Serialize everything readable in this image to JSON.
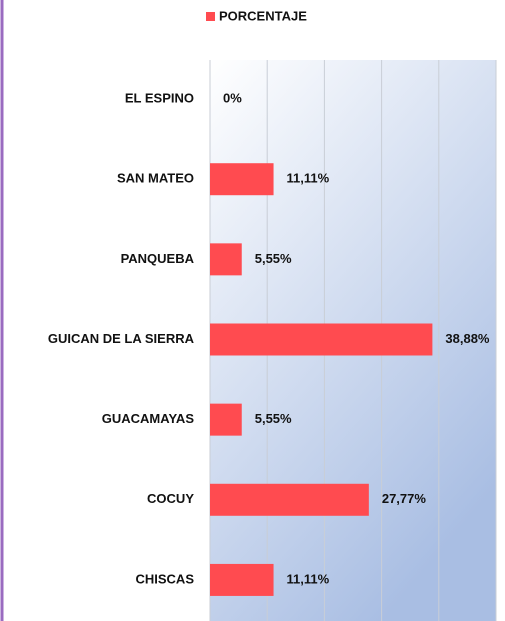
{
  "chart_data": {
    "type": "hbar",
    "legend": "PORCENTAJE",
    "categories": [
      "EL ESPINO",
      "SAN MATEO",
      "PANQUEBA",
      "GUICAN DE LA SIERRA",
      "GUACAMAYAS",
      "COCUY",
      "CHISCAS"
    ],
    "values": [
      0,
      11.11,
      5.55,
      38.88,
      5.55,
      27.77,
      11.11
    ],
    "value_labels": [
      "0%",
      "11,11%",
      "5,55%",
      "38,88%",
      "5,55%",
      "27,77%",
      "11,11%"
    ],
    "color": "#ff4b50",
    "xlim": [
      0,
      50
    ],
    "xticks": [
      0,
      10,
      20,
      30,
      40,
      50
    ],
    "grid": true
  }
}
